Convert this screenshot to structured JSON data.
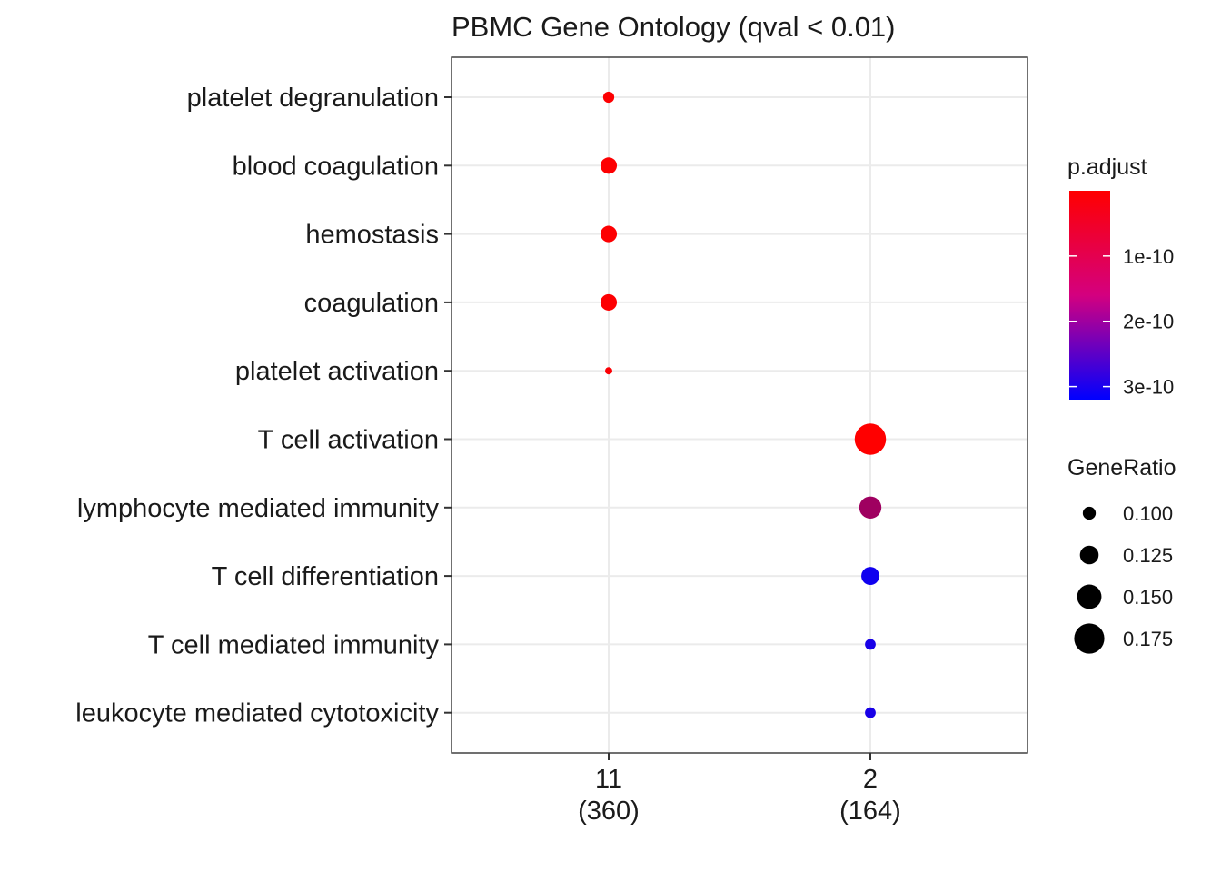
{
  "chart_data": {
    "type": "scatter",
    "title": "PBMC Gene Ontology (qval < 0.01)",
    "xlabel": "",
    "ylabel": "",
    "x_categories": [
      {
        "line1": "11",
        "line2": "(360)"
      },
      {
        "line1": "2",
        "line2": "(164)"
      }
    ],
    "y_categories": [
      "platelet degranulation",
      "blood coagulation",
      "hemostasis",
      "coagulation",
      "platelet activation",
      "T cell activation",
      "lymphocyte mediated immunity",
      "T cell differentiation",
      "T cell mediated immunity",
      "leukocyte mediated cytotoxicity"
    ],
    "points": [
      {
        "x": "11",
        "y": "platelet degranulation",
        "gene_ratio": 0.092,
        "p_adjust": 2e-12
      },
      {
        "x": "11",
        "y": "blood coagulation",
        "gene_ratio": 0.115,
        "p_adjust": 3e-12
      },
      {
        "x": "11",
        "y": "hemostasis",
        "gene_ratio": 0.115,
        "p_adjust": 3e-12
      },
      {
        "x": "11",
        "y": "coagulation",
        "gene_ratio": 0.115,
        "p_adjust": 3e-12
      },
      {
        "x": "11",
        "y": "platelet activation",
        "gene_ratio": 0.075,
        "p_adjust": 5e-12
      },
      {
        "x": "2",
        "y": "T cell activation",
        "gene_ratio": 0.18,
        "p_adjust": 1e-13
      },
      {
        "x": "2",
        "y": "lymphocyte mediated immunity",
        "gene_ratio": 0.14,
        "p_adjust": 1.2e-10
      },
      {
        "x": "2",
        "y": "T cell differentiation",
        "gene_ratio": 0.122,
        "p_adjust": 3e-10
      },
      {
        "x": "2",
        "y": "T cell mediated immunity",
        "gene_ratio": 0.09,
        "p_adjust": 2.9e-10
      },
      {
        "x": "2",
        "y": "leukocyte mediated cytotoxicity",
        "gene_ratio": 0.09,
        "p_adjust": 2.9e-10
      }
    ],
    "grid": true,
    "legend_position": "right",
    "color_legend": {
      "title": "p.adjust",
      "min": 1e-13,
      "max": 3.2e-10,
      "ticks": [
        {
          "value": 1e-10,
          "label": "1e-10"
        },
        {
          "value": 2e-10,
          "label": "2e-10"
        },
        {
          "value": 3e-10,
          "label": "3e-10"
        }
      ],
      "low_color": "#ff0000",
      "high_color": "#0000ff"
    },
    "size_legend": {
      "title": "GeneRatio",
      "entries": [
        {
          "value": 0.1,
          "label": "0.100"
        },
        {
          "value": 0.125,
          "label": "0.125"
        },
        {
          "value": 0.15,
          "label": "0.150"
        },
        {
          "value": 0.175,
          "label": "0.175"
        }
      ],
      "point_color": "#000000"
    },
    "colors": {
      "grid": "#ebebeb",
      "panel_border": "#333333",
      "axis_tick": "#333333",
      "text": "#1a1a1a"
    }
  }
}
